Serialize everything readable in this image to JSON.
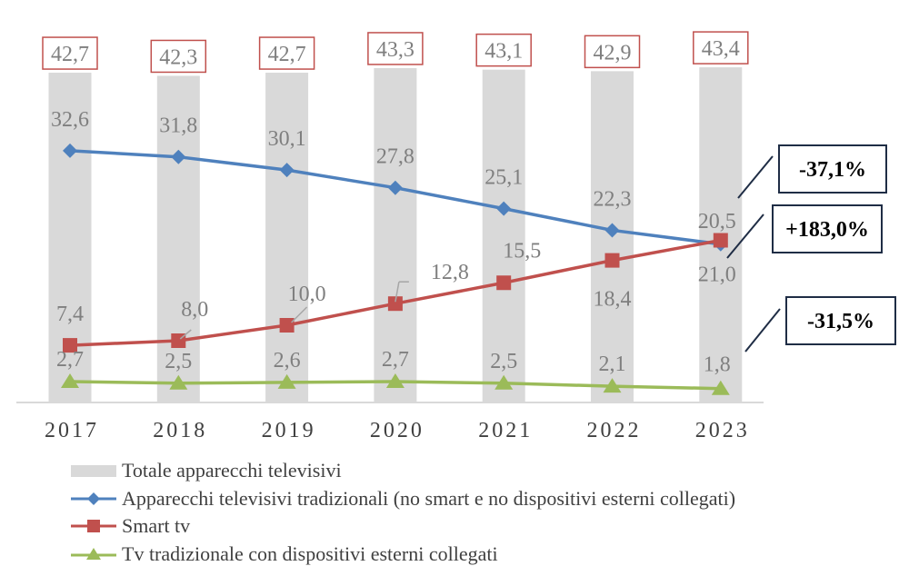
{
  "chart_data": {
    "type": "bar+line",
    "title": "",
    "xlabel": "",
    "ylabel": "",
    "ylim": [
      0,
      44
    ],
    "grid": false,
    "legend_position": "bottom",
    "categories": [
      "2017",
      "2018",
      "2019",
      "2020",
      "2021",
      "2022",
      "2023"
    ],
    "bar_series": {
      "name": "Totale apparecchi televisivi",
      "color": "#d9d9d9",
      "values": [
        42.7,
        42.3,
        42.7,
        43.3,
        43.1,
        42.9,
        43.4
      ],
      "labels": [
        "42,7",
        "42,3",
        "42,7",
        "43,3",
        "43,1",
        "42,9",
        "43,4"
      ],
      "label_box_color": "#c0504d"
    },
    "series": [
      {
        "name": "Apparecchi televisivi tradizionali (no smart e no dispositivi esterni collegati)",
        "color": "#4f81bd",
        "marker": "diamond",
        "values": [
          32.6,
          31.8,
          30.1,
          27.8,
          25.1,
          22.3,
          20.5
        ],
        "labels": [
          "32,6",
          "31,8",
          "30,1",
          "27,8",
          "25,1",
          "22,3",
          "20,5"
        ]
      },
      {
        "name": "Smart tv",
        "color": "#c0504d",
        "marker": "square",
        "values": [
          7.4,
          8.0,
          10.0,
          12.8,
          15.5,
          18.4,
          21.0
        ],
        "labels": [
          "7,4",
          "8,0",
          "10,0",
          "12,8",
          "15,5",
          "18,4",
          "21,0"
        ]
      },
      {
        "name": "Tv tradizionale con dispositivi esterni collegati",
        "color": "#9bbb59",
        "marker": "triangle",
        "values": [
          2.7,
          2.5,
          2.6,
          2.7,
          2.5,
          2.1,
          1.8
        ],
        "labels": [
          "2,7",
          "2,5",
          "2,6",
          "2,7",
          "2,5",
          "2,1",
          "1,8"
        ]
      }
    ],
    "annotations": [
      {
        "series": "Apparecchi televisivi tradizionali (no smart e no dispositivi esterni collegati)",
        "text": "-37,1%"
      },
      {
        "series": "Smart tv",
        "text": "+183,0%"
      },
      {
        "series": "Tv tradizionale con dispositivi esterni collegati",
        "text": "-31,5%"
      }
    ]
  }
}
